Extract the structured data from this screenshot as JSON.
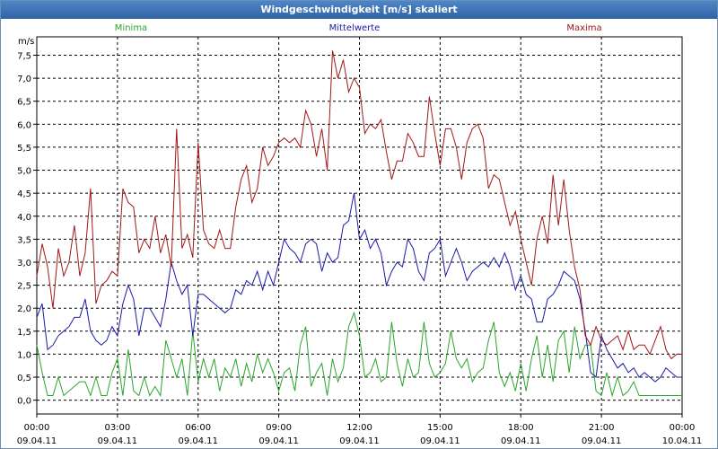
{
  "window": {
    "title": "Windgeschwindigkeit [m/s] skaliert"
  },
  "chart_data": {
    "type": "line",
    "title": "Windgeschwindigkeit [m/s] skaliert",
    "ylabel": "m/s",
    "ylim": [
      -0.3,
      7.9
    ],
    "xlim": [
      0,
      24
    ],
    "grid": true,
    "yticks": [
      "0,0",
      "0,5",
      "1,0",
      "1,5",
      "2,0",
      "2,5",
      "3,0",
      "3,5",
      "4,0",
      "4,5",
      "5,0",
      "5,5",
      "6,0",
      "6,5",
      "7,0",
      "7,5"
    ],
    "ytick_values": [
      0,
      0.5,
      1,
      1.5,
      2,
      2.5,
      3,
      3.5,
      4,
      4.5,
      5,
      5.5,
      6,
      6.5,
      7,
      7.5
    ],
    "xticks": [
      {
        "time": "00:00",
        "date": "09.04.11"
      },
      {
        "time": "03:00",
        "date": "09.04.11"
      },
      {
        "time": "06:00",
        "date": "09.04.11"
      },
      {
        "time": "09:00",
        "date": "09.04.11"
      },
      {
        "time": "12:00",
        "date": "09.04.11"
      },
      {
        "time": "15:00",
        "date": "09.04.11"
      },
      {
        "time": "18:00",
        "date": "09.04.11"
      },
      {
        "time": "21:00",
        "date": "09.04.11"
      },
      {
        "time": "00:00",
        "date": "10.04.11"
      }
    ],
    "legend_position": "top",
    "series": [
      {
        "name": "Minima",
        "color": "#2aa52a",
        "x": [
          0,
          0.2,
          0.4,
          0.6,
          0.8,
          1,
          1.2,
          1.4,
          1.6,
          1.8,
          2,
          2.2,
          2.4,
          2.6,
          2.8,
          3,
          3.2,
          3.4,
          3.6,
          3.8,
          4,
          4.2,
          4.4,
          4.6,
          4.8,
          5,
          5.2,
          5.4,
          5.6,
          5.8,
          6,
          6.2,
          6.4,
          6.6,
          6.8,
          7,
          7.2,
          7.4,
          7.6,
          7.8,
          8,
          8.2,
          8.4,
          8.6,
          8.8,
          9,
          9.2,
          9.4,
          9.6,
          9.8,
          10,
          10.2,
          10.4,
          10.6,
          10.8,
          11,
          11.2,
          11.4,
          11.6,
          11.8,
          12,
          12.2,
          12.4,
          12.6,
          12.8,
          13,
          13.2,
          13.4,
          13.6,
          13.8,
          14,
          14.2,
          14.4,
          14.6,
          14.8,
          15,
          15.2,
          15.4,
          15.6,
          15.8,
          16,
          16.2,
          16.4,
          16.6,
          16.8,
          17,
          17.2,
          17.4,
          17.6,
          17.8,
          18,
          18.2,
          18.4,
          18.6,
          18.8,
          19,
          19.2,
          19.4,
          19.6,
          19.8,
          20,
          20.2,
          20.4,
          20.6,
          20.8,
          21,
          21.2,
          21.4,
          21.6,
          21.8,
          22,
          22.2,
          22.4,
          22.6,
          22.8,
          23,
          23.2,
          23.4,
          23.6,
          23.8,
          24
        ],
        "y": [
          1.2,
          0.6,
          0.1,
          0.1,
          0.5,
          0.1,
          0.2,
          0.3,
          0.4,
          0.4,
          0.1,
          0.5,
          0.1,
          0.1,
          0.6,
          0.9,
          0.1,
          1.1,
          0.2,
          0.1,
          0.5,
          0.1,
          0.3,
          0.1,
          1.3,
          0.9,
          0.5,
          0.9,
          0.1,
          1.5,
          0.4,
          0.9,
          0.5,
          0.9,
          0.2,
          0.7,
          0.5,
          0.9,
          0.3,
          0.8,
          0.4,
          1.0,
          0.6,
          0.9,
          0.6,
          0.2,
          0.6,
          0.7,
          0.2,
          1.2,
          1.6,
          0.3,
          0.6,
          0.8,
          0.1,
          0.9,
          0.4,
          0.7,
          1.6,
          1.9,
          1.4,
          0.5,
          0.6,
          0.9,
          0.4,
          0.5,
          1.7,
          0.8,
          0.3,
          0.9,
          0.5,
          0.6,
          1.7,
          0.8,
          0.5,
          0.6,
          0.8,
          1.5,
          0.9,
          0.7,
          0.9,
          0.4,
          0.6,
          0.7,
          1.3,
          1.7,
          0.6,
          0.3,
          0.6,
          0.2,
          0.8,
          0.2,
          0.9,
          1.4,
          0.5,
          1.2,
          0.4,
          1.3,
          1.5,
          0.6,
          1.6,
          0.9,
          1.2,
          1.2,
          0.2,
          0.1,
          0.6,
          0.1,
          0.5,
          0.1,
          0.2,
          0.4,
          0.1,
          0.1,
          0.1,
          0.1,
          0.1,
          0.1,
          0.1,
          0.1,
          0.1
        ]
      },
      {
        "name": "Mittelwerte",
        "color": "#1a1aa8",
        "x": [
          0,
          0.2,
          0.4,
          0.6,
          0.8,
          1,
          1.2,
          1.4,
          1.6,
          1.8,
          2,
          2.2,
          2.4,
          2.6,
          2.8,
          3,
          3.2,
          3.4,
          3.6,
          3.8,
          4,
          4.2,
          4.4,
          4.6,
          4.8,
          5,
          5.2,
          5.4,
          5.6,
          5.8,
          6,
          6.2,
          6.4,
          6.6,
          6.8,
          7,
          7.2,
          7.4,
          7.6,
          7.8,
          8,
          8.2,
          8.4,
          8.6,
          8.8,
          9,
          9.2,
          9.4,
          9.6,
          9.8,
          10,
          10.2,
          10.4,
          10.6,
          10.8,
          11,
          11.2,
          11.4,
          11.6,
          11.8,
          12,
          12.2,
          12.4,
          12.6,
          12.8,
          13,
          13.2,
          13.4,
          13.6,
          13.8,
          14,
          14.2,
          14.4,
          14.6,
          14.8,
          15,
          15.2,
          15.4,
          15.6,
          15.8,
          16,
          16.2,
          16.4,
          16.6,
          16.8,
          17,
          17.2,
          17.4,
          17.6,
          17.8,
          18,
          18.2,
          18.4,
          18.6,
          18.8,
          19,
          19.2,
          19.4,
          19.6,
          19.8,
          20,
          20.2,
          20.4,
          20.6,
          20.8,
          21,
          21.2,
          21.4,
          21.6,
          21.8,
          22,
          22.2,
          22.4,
          22.6,
          22.8,
          23,
          23.2,
          23.4,
          23.6,
          23.8,
          24
        ],
        "y": [
          1.8,
          2.1,
          1.1,
          1.2,
          1.4,
          1.5,
          1.6,
          1.8,
          1.8,
          2.2,
          1.5,
          1.3,
          1.2,
          1.3,
          1.6,
          1.4,
          2.1,
          2.5,
          2.2,
          1.4,
          2.0,
          2.0,
          1.8,
          1.6,
          2.2,
          3.0,
          2.6,
          2.3,
          2.5,
          1.4,
          2.3,
          2.3,
          2.2,
          2.1,
          2.0,
          1.9,
          2.0,
          2.4,
          2.3,
          2.6,
          2.5,
          2.8,
          2.4,
          2.8,
          2.5,
          3.0,
          3.5,
          3.3,
          3.2,
          3.0,
          3.4,
          3.5,
          3.4,
          2.8,
          3.2,
          3.0,
          3.1,
          3.8,
          3.9,
          4.5,
          3.5,
          3.7,
          3.3,
          3.5,
          3.2,
          2.5,
          2.8,
          3.0,
          2.9,
          3.5,
          3.3,
          2.8,
          2.6,
          3.2,
          3.3,
          3.5,
          2.7,
          3.0,
          3.3,
          3.0,
          2.6,
          2.8,
          2.9,
          3.0,
          2.9,
          3.1,
          2.9,
          3.2,
          2.9,
          2.4,
          2.7,
          2.3,
          2.2,
          1.7,
          1.7,
          2.2,
          2.3,
          2.5,
          2.8,
          2.7,
          2.6,
          2.2,
          1.5,
          0.6,
          0.5,
          1.4,
          1.1,
          0.9,
          0.7,
          0.8,
          0.6,
          0.7,
          0.5,
          0.6,
          0.5,
          0.4,
          0.5,
          0.7,
          0.6,
          0.5,
          0.5
        ]
      },
      {
        "name": "Maxima",
        "color": "#a01818",
        "x": [
          0,
          0.2,
          0.4,
          0.6,
          0.8,
          1,
          1.2,
          1.4,
          1.6,
          1.8,
          2,
          2.2,
          2.4,
          2.6,
          2.8,
          3,
          3.2,
          3.4,
          3.6,
          3.8,
          4,
          4.2,
          4.4,
          4.6,
          4.8,
          5,
          5.2,
          5.4,
          5.6,
          5.8,
          6,
          6.2,
          6.4,
          6.6,
          6.8,
          7,
          7.2,
          7.4,
          7.6,
          7.8,
          8,
          8.2,
          8.4,
          8.6,
          8.8,
          9,
          9.2,
          9.4,
          9.6,
          9.8,
          10,
          10.2,
          10.4,
          10.6,
          10.8,
          11,
          11.2,
          11.4,
          11.6,
          11.8,
          12,
          12.2,
          12.4,
          12.6,
          12.8,
          13,
          13.2,
          13.4,
          13.6,
          13.8,
          14,
          14.2,
          14.4,
          14.6,
          14.8,
          15,
          15.2,
          15.4,
          15.6,
          15.8,
          16,
          16.2,
          16.4,
          16.6,
          16.8,
          17,
          17.2,
          17.4,
          17.6,
          17.8,
          18,
          18.2,
          18.4,
          18.6,
          18.8,
          19,
          19.2,
          19.4,
          19.6,
          19.8,
          20,
          20.2,
          20.4,
          20.6,
          20.8,
          21,
          21.2,
          21.4,
          21.6,
          21.8,
          22,
          22.2,
          22.4,
          22.6,
          22.8,
          23,
          23.2,
          23.4,
          23.6,
          23.8,
          24
        ],
        "y": [
          2.7,
          3.4,
          2.9,
          2.0,
          3.3,
          2.7,
          3.0,
          3.8,
          2.7,
          3.2,
          4.6,
          2.1,
          2.5,
          2.6,
          2.8,
          2.7,
          4.6,
          4.3,
          4.2,
          3.2,
          3.5,
          3.3,
          4.0,
          3.2,
          3.6,
          2.9,
          5.9,
          3.3,
          3.6,
          3.1,
          5.6,
          3.7,
          3.4,
          3.3,
          3.7,
          3.3,
          3.3,
          4.2,
          4.8,
          5.1,
          4.3,
          4.6,
          5.5,
          5.1,
          5.3,
          5.6,
          5.7,
          5.6,
          5.7,
          5.5,
          6.3,
          6.0,
          5.3,
          5.9,
          5.0,
          7.6,
          7.0,
          7.4,
          6.7,
          7.0,
          6.8,
          5.8,
          6.0,
          5.9,
          6.1,
          5.4,
          4.8,
          5.2,
          5.2,
          5.8,
          5.6,
          5.3,
          5.3,
          6.6,
          5.8,
          5.1,
          5.9,
          5.9,
          5.5,
          4.8,
          5.6,
          5.9,
          6.0,
          5.7,
          4.6,
          4.9,
          4.8,
          4.3,
          3.8,
          4.1,
          3.5,
          3.0,
          2.5,
          3.5,
          4.0,
          3.4,
          4.9,
          3.8,
          4.8,
          3.7,
          2.9,
          2.4,
          1.4,
          1.2,
          1.6,
          1.3,
          1.2,
          1.3,
          1.4,
          1.1,
          1.5,
          1.1,
          1.2,
          1.2,
          1.0,
          1.3,
          1.6,
          1.1,
          0.9,
          1.0,
          1.0
        ]
      }
    ]
  }
}
